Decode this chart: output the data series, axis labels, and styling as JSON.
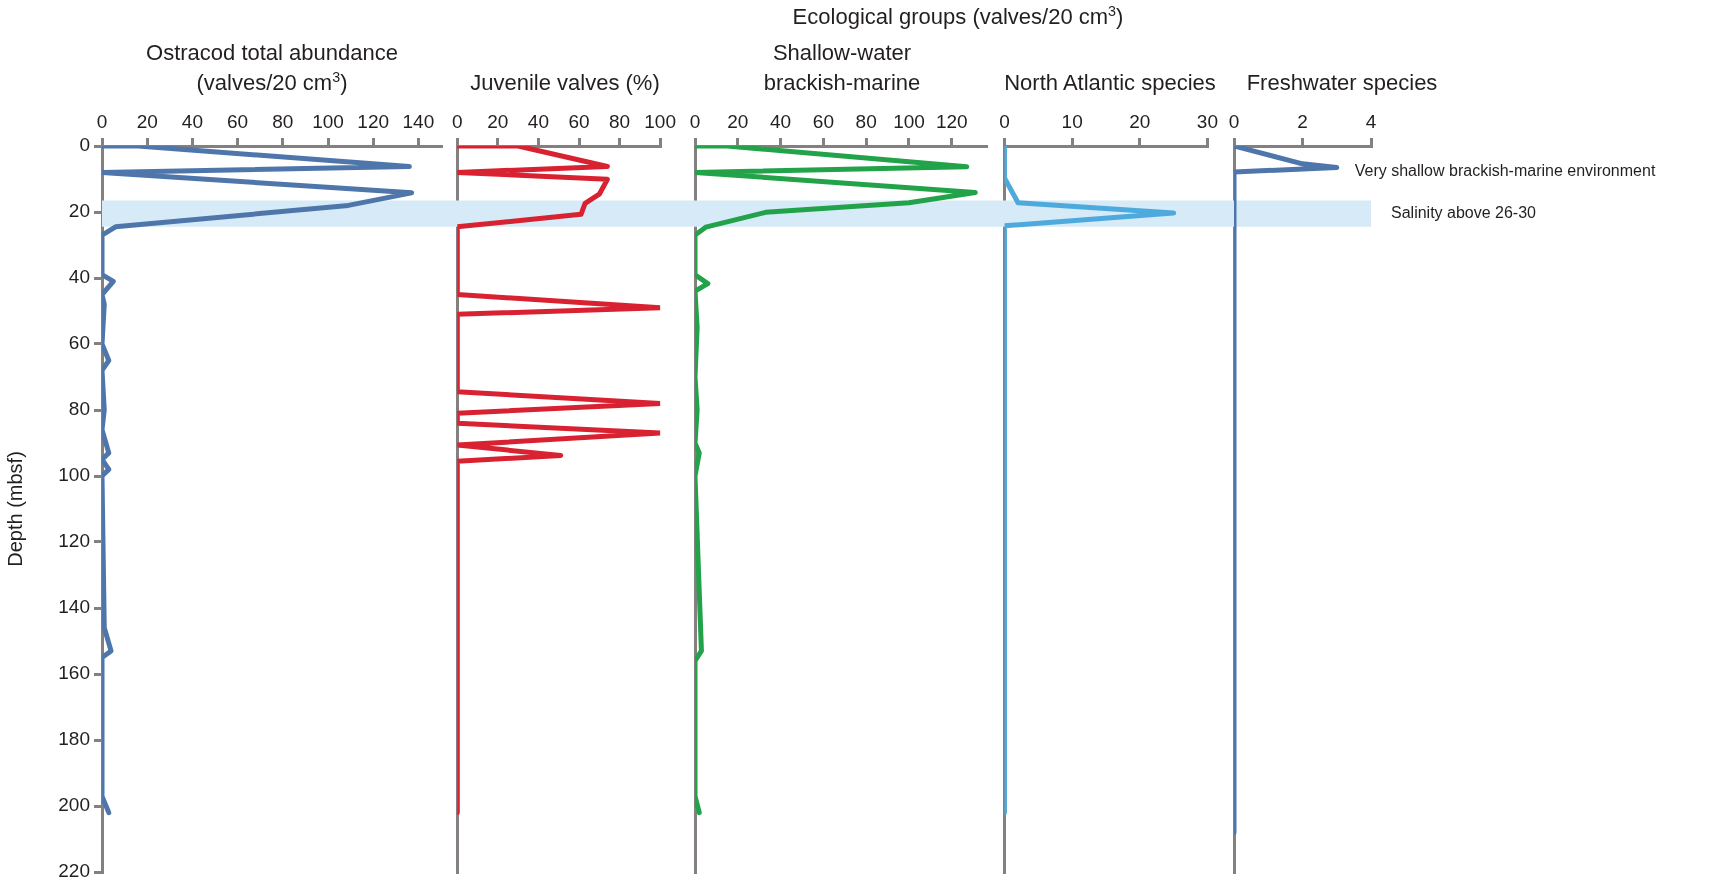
{
  "chart_data": [
    {
      "type": "line",
      "title": "Ostracod total abundance\n(valves/20 cm$^{3}$)",
      "ylabel": "Depth (mbsf)",
      "xlim": [
        0,
        150
      ],
      "xticks": [
        0,
        20,
        40,
        60,
        80,
        100,
        120,
        140
      ],
      "ylim": [
        220,
        0
      ],
      "yticks": [
        0,
        20,
        40,
        60,
        80,
        100,
        120,
        140,
        160,
        180,
        200,
        220
      ],
      "series": [
        {
          "color": "#4f76ab",
          "x": [
            0,
            16,
            136,
            0,
            137,
            109,
            6,
            0,
            0,
            5,
            0,
            1,
            0,
            3,
            0,
            1,
            0,
            3,
            0,
            3,
            0,
            1,
            4,
            0,
            0,
            3
          ],
          "values": [
            0,
            0,
            6.2,
            8,
            14.2,
            18,
            24.5,
            27,
            39,
            41,
            45,
            48,
            60,
            65,
            68,
            80,
            86,
            93,
            95,
            98,
            100,
            146,
            153,
            155,
            197,
            202
          ]
        }
      ],
      "bands": [
        {
          "axis": "y",
          "from": 16.5,
          "to": 24.5,
          "color": "#d6ebf7"
        }
      ]
    },
    {
      "type": "line",
      "title": "Juvenile valves (%)",
      "tick_labels": "x",
      "xlim": [
        0,
        100
      ],
      "xticks": [
        0,
        20,
        40,
        60,
        80,
        100
      ],
      "ylim": [
        220,
        0
      ],
      "yticks": [
        0,
        20,
        40,
        60,
        80,
        100,
        120,
        140,
        160,
        180,
        200,
        220
      ],
      "series": [
        {
          "color": "#d92231",
          "x": [
            0,
            30,
            74,
            0,
            74,
            70,
            63,
            61,
            0,
            0,
            100,
            0,
            0,
            100,
            0,
            0,
            100,
            0,
            51,
            0,
            0
          ],
          "values": [
            0,
            0,
            6.2,
            8,
            10.1,
            14.6,
            17.4,
            20.7,
            24.5,
            45,
            49,
            51,
            74.5,
            78,
            81,
            84,
            87,
            90.6,
            93.8,
            95.5,
            202
          ]
        }
      ],
      "bands": [
        {
          "axis": "y",
          "from": 16.5,
          "to": 24.5,
          "color": "#d6ebf7"
        }
      ]
    },
    {
      "type": "line",
      "title": "Shallow-water\nbrackish-marine",
      "tick_labels": "x",
      "xlim": [
        0,
        136
      ],
      "xticks": [
        0,
        20,
        40,
        60,
        80,
        100,
        120
      ],
      "ylim": [
        220,
        0
      ],
      "yticks": [
        0,
        20,
        40,
        60,
        80,
        100,
        120,
        140,
        160,
        180,
        200,
        220
      ],
      "series": [
        {
          "color": "#22a34a",
          "x": [
            0,
            15,
            127,
            0,
            131,
            100,
            33,
            5,
            0,
            0,
            6,
            0,
            1,
            0,
            1,
            0,
            2,
            0,
            3,
            0,
            0,
            2
          ],
          "values": [
            0,
            0,
            6.3,
            8,
            14.1,
            17.2,
            20.1,
            24.6,
            27,
            39,
            41.7,
            44,
            55,
            70,
            80,
            90,
            93,
            100,
            153,
            156,
            197,
            202
          ]
        }
      ],
      "bands": [
        {
          "axis": "y",
          "from": 16.5,
          "to": 24.5,
          "color": "#d6ebf7"
        }
      ]
    },
    {
      "type": "line",
      "title": "North Atlantic species",
      "subtitle": "Ecological groups (valves/20 cm$^{3}$)",
      "tick_labels": "x",
      "xlim": [
        0,
        30
      ],
      "xticks": [
        0,
        10,
        20,
        30
      ],
      "ylim": [
        220,
        0
      ],
      "yticks": [
        0,
        20,
        40,
        60,
        80,
        100,
        120,
        140,
        160,
        180,
        200,
        220
      ],
      "series": [
        {
          "color": "#4eaadc",
          "x": [
            0,
            0,
            2,
            25,
            0,
            0
          ],
          "values": [
            0,
            9.7,
            17.2,
            20.3,
            24.2,
            202
          ]
        }
      ],
      "bands": [
        {
          "axis": "y",
          "from": 16.5,
          "to": 24.5,
          "color": "#d6ebf7"
        }
      ]
    },
    {
      "type": "line",
      "title": "Freshwater species",
      "tick_labels": "x",
      "xlim": [
        0,
        4
      ],
      "xticks": [
        0,
        2,
        4
      ],
      "ylim": [
        220,
        0
      ],
      "yticks": [
        0,
        20,
        40,
        60,
        80,
        100,
        120,
        140,
        160,
        180,
        200,
        220
      ],
      "series": [
        {
          "color": "#4f76ab",
          "x": [
            0,
            2,
            3,
            0,
            0
          ],
          "values": [
            0,
            5.4,
            6.5,
            7.9,
            208
          ]
        }
      ],
      "bands": [
        {
          "axis": "y",
          "from": 16.5,
          "to": 24.5,
          "color": "#d6ebf7",
          "label": "Salinity above 26-30"
        }
      ],
      "annotations": [
        {
          "text": "Very shallow brackish-marine environment",
          "x": 3,
          "y": 6.5
        }
      ]
    }
  ]
}
